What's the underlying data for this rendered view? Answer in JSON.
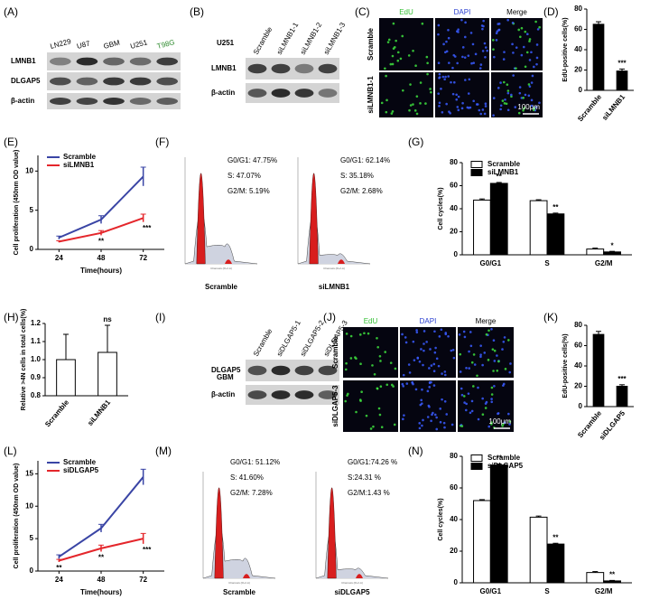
{
  "panel_labels": [
    "(A)",
    "(B)",
    "(C)",
    "(D)",
    "(E)",
    "(F)",
    "(G)",
    "(H)",
    "(I)",
    "(J)",
    "(K)",
    "(L)",
    "(M)",
    "(N)"
  ],
  "blots": [
    {
      "lanes": [
        "LN229",
        "U87",
        "GBM",
        "U251",
        "T98G"
      ],
      "rows": [
        "LMNB1",
        "DLGAP5",
        "β-actin"
      ]
    },
    {
      "cell_line": "U251",
      "lanes": [
        "Scramble",
        "siLMNB1-1",
        "siLMNB1-2",
        "siLMNB1-3"
      ],
      "rows": [
        "LMNB1",
        "β-actin"
      ]
    },
    {
      "cell_line": "GBM",
      "lanes": [
        "Scramble",
        "siDLGAP5-1",
        "siDLGAP5-2",
        "siDLGAP5-3"
      ],
      "rows": [
        "DLGAP5",
        "β-actin"
      ]
    }
  ],
  "imaging": [
    {
      "channels": [
        "EdU",
        "DAPI",
        "Merge"
      ],
      "rows": [
        "Scramble",
        "siLMNB1-1"
      ],
      "scale_bar": "100μm"
    },
    {
      "channels": [
        "EdU",
        "DAPI",
        "Merge"
      ],
      "rows": [
        "Scramble",
        "siDLGAP5-3"
      ],
      "scale_bar": "100μm"
    }
  ],
  "flow": [
    {
      "axis_label": "Channels (FL2-A)",
      "samples": [
        {
          "name": "Scramble",
          "stats": [
            "G0/G1: 47.75%",
            "S: 47.07%",
            "G2/M: 5.19%"
          ]
        },
        {
          "name": "siLMNB1",
          "stats": [
            "G0/G1: 62.14%",
            "S: 35.18%",
            "G2/M: 2.68%"
          ]
        }
      ]
    },
    {
      "axis_label": "Channels (FL2-A)",
      "samples": [
        {
          "name": "Scramble",
          "stats": [
            "G0/G1: 51.12%",
            "S: 41.60%",
            "G2/M: 7.28%"
          ]
        },
        {
          "name": "siDLGAP5",
          "stats": [
            "G0/G1:74.26 %",
            "S:24.31 %",
            "G2/M:1.43 %"
          ]
        }
      ]
    }
  ],
  "chart_data": [
    {
      "type": "bar",
      "y_label": "EdU-positive cells(%)",
      "categories": [
        "Scramble",
        "siLMNB1"
      ],
      "ylim": [
        0,
        80
      ],
      "yticks": [
        0,
        20,
        40,
        60,
        80
      ],
      "series": [
        {
          "color": "#000000",
          "values": [
            65,
            19
          ],
          "errors": [
            2.5,
            2
          ],
          "annotations": [
            null,
            "***"
          ]
        }
      ]
    },
    {
      "type": "line",
      "x_label": "Time(hours)",
      "y_label": "Cell proliferation (450nm OD value)",
      "x": [
        24,
        48,
        72
      ],
      "xlim": [
        12,
        84
      ],
      "xticks": [
        24,
        48,
        72
      ],
      "ylim": [
        0,
        12
      ],
      "yticks": [
        0,
        5,
        10
      ],
      "legend": "upper left",
      "series": [
        {
          "name": "Scramble",
          "color": "#3a45a5",
          "values": [
            1.5,
            3.8,
            9.3
          ],
          "errors": [
            0.2,
            0.5,
            1.2
          ]
        },
        {
          "name": "siLMNB1",
          "color": "#e4262b",
          "values": [
            1.0,
            2.1,
            4.0
          ],
          "errors": [
            0.1,
            0.3,
            0.5
          ],
          "annotations": [
            null,
            "**",
            "***"
          ]
        }
      ]
    },
    {
      "type": "bar",
      "y_label": "Cell cycles(%)",
      "categories": [
        "G0/G1",
        "S",
        "G2/M"
      ],
      "ylim": [
        0,
        80
      ],
      "yticks": [
        0,
        20,
        40,
        60,
        80
      ],
      "legend": "upper left",
      "series": [
        {
          "name": "Scramble",
          "color": "#ffffff",
          "values": [
            47.5,
            47,
            5
          ],
          "errors": [
            1,
            0.8,
            0.8
          ]
        },
        {
          "name": "siLMNB1",
          "color": "#000000",
          "values": [
            62,
            35.5,
            2.5
          ],
          "errors": [
            0.8,
            0.7,
            0.5
          ],
          "annotations": [
            "**",
            "**",
            "*"
          ]
        }
      ]
    },
    {
      "type": "bar",
      "y_label": "Relative >4N cells in total cells(%)",
      "categories": [
        "Scramble",
        "siLMNB1"
      ],
      "ylim": [
        0.8,
        1.2
      ],
      "yticks": [
        0.8,
        0.9,
        {
          "value": 1,
          "label": "1.0"
        },
        1.1,
        1.2
      ],
      "series": [
        {
          "color": "#ffffff",
          "values": [
            1.0,
            1.04
          ],
          "errors": [
            0.14,
            0.15
          ],
          "annotations": [
            null,
            "ns"
          ]
        }
      ]
    },
    {
      "type": "bar",
      "y_label": "EdU-positive cells(%)",
      "categories": [
        "Scramble",
        "siDLGAP5"
      ],
      "ylim": [
        0,
        80
      ],
      "yticks": [
        0,
        20,
        40,
        60,
        80
      ],
      "series": [
        {
          "color": "#000000",
          "values": [
            71,
            20
          ],
          "errors": [
            3,
            1.5
          ],
          "annotations": [
            null,
            "***"
          ]
        }
      ]
    },
    {
      "type": "line",
      "x_label": "Time(hours)",
      "y_label": "Cell proliferation (450nm OD value)",
      "x": [
        24,
        48,
        72
      ],
      "xlim": [
        12,
        84
      ],
      "xticks": [
        24,
        48,
        72
      ],
      "ylim": [
        0,
        17
      ],
      "yticks": [
        0,
        5,
        10,
        15
      ],
      "legend": "upper left",
      "series": [
        {
          "name": "Scramble",
          "color": "#3a45a5",
          "values": [
            2.2,
            6.6,
            14.5
          ],
          "errors": [
            0.3,
            0.6,
            1.2
          ]
        },
        {
          "name": "siDLGAP5",
          "color": "#e4262b",
          "values": [
            1.6,
            3.5,
            5.0
          ],
          "errors": [
            0.2,
            0.5,
            0.8
          ],
          "annotations": [
            "**",
            "**",
            "***"
          ]
        }
      ]
    },
    {
      "type": "bar",
      "y_label": "Cell cycles(%)",
      "categories": [
        "G0/G1",
        "S",
        "G2/M"
      ],
      "ylim": [
        0,
        80
      ],
      "yticks": [
        0,
        20,
        40,
        60,
        80
      ],
      "legend": "upper left",
      "series": [
        {
          "name": "Scramble",
          "color": "#ffffff",
          "values": [
            52,
            41.5,
            6.5
          ],
          "errors": [
            0.6,
            0.7,
            0.6
          ]
        },
        {
          "name": "siDLGAP5",
          "color": "#000000",
          "values": [
            74.5,
            24.5,
            1.2
          ],
          "errors": [
            0.6,
            0.5,
            0.3
          ],
          "annotations": [
            "**",
            "**",
            "**"
          ]
        }
      ]
    }
  ]
}
